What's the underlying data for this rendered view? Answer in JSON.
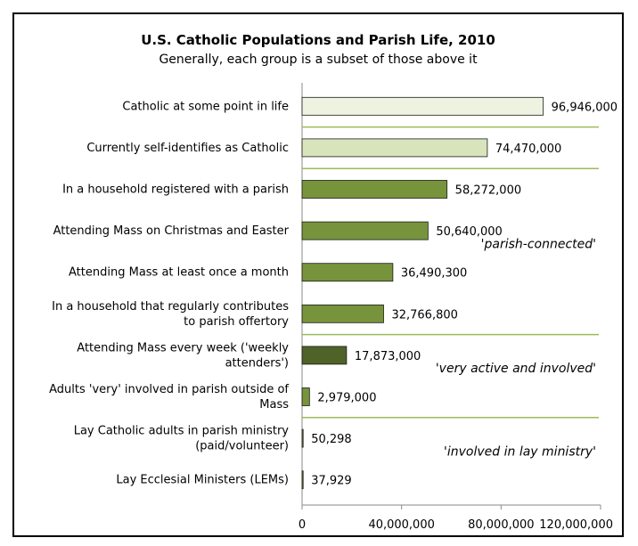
{
  "chart_data": {
    "type": "bar",
    "orientation": "horizontal",
    "title": "U.S. Catholic Populations and Parish Life, 2010",
    "subtitle": "Generally, each group is a subset of those above it",
    "categories": [
      [
        "Catholic at some point in life"
      ],
      [
        "Currently self-identifies as Catholic"
      ],
      [
        "In a household registered with a parish"
      ],
      [
        "Attending Mass on Christmas and Easter"
      ],
      [
        "Attending Mass at least once a month"
      ],
      [
        "In a household that regularly contributes",
        "to parish offertory"
      ],
      [
        "Attending Mass every week ('weekly",
        "attenders')"
      ],
      [
        "Adults 'very' involved in parish outside of",
        "Mass"
      ],
      [
        "Lay Catholic adults in parish ministry",
        "(paid/volunteer)"
      ],
      [
        "Lay Ecclesial Ministers (LEMs)"
      ]
    ],
    "values": [
      96946000,
      74470000,
      58272000,
      50640000,
      36490300,
      32766800,
      17873000,
      2979000,
      50298,
      37929
    ],
    "value_labels": [
      "96,946,000",
      "74,470,000",
      "58,272,000",
      "50,640,000",
      "36,490,300",
      "32,766,800",
      "17,873,000",
      "2,979,000",
      "50,298",
      "37,929"
    ],
    "bar_colors": [
      "#eef2e0",
      "#d8e4bc",
      "#77933c",
      "#77933c",
      "#77933c",
      "#77933c",
      "#4f6228",
      "#77933c",
      "#77933c",
      "#77933c"
    ],
    "xlim": [
      0,
      120000000
    ],
    "xticks": [
      0,
      40000000,
      80000000,
      120000000
    ],
    "xtick_labels": [
      "0",
      "40,000,000",
      "80,000,000",
      "120,000,000"
    ],
    "group_annotations": [
      {
        "text": "'parish-connected'",
        "after_index": 3
      },
      {
        "text": "'very active and involved'",
        "after_index": 6
      },
      {
        "text": "'involved in lay ministry'",
        "after_index": 8
      }
    ],
    "group_separators_after": [
      0,
      1,
      5,
      7
    ],
    "separator_color": "#9bbb59",
    "grid": false,
    "legend": "none"
  }
}
